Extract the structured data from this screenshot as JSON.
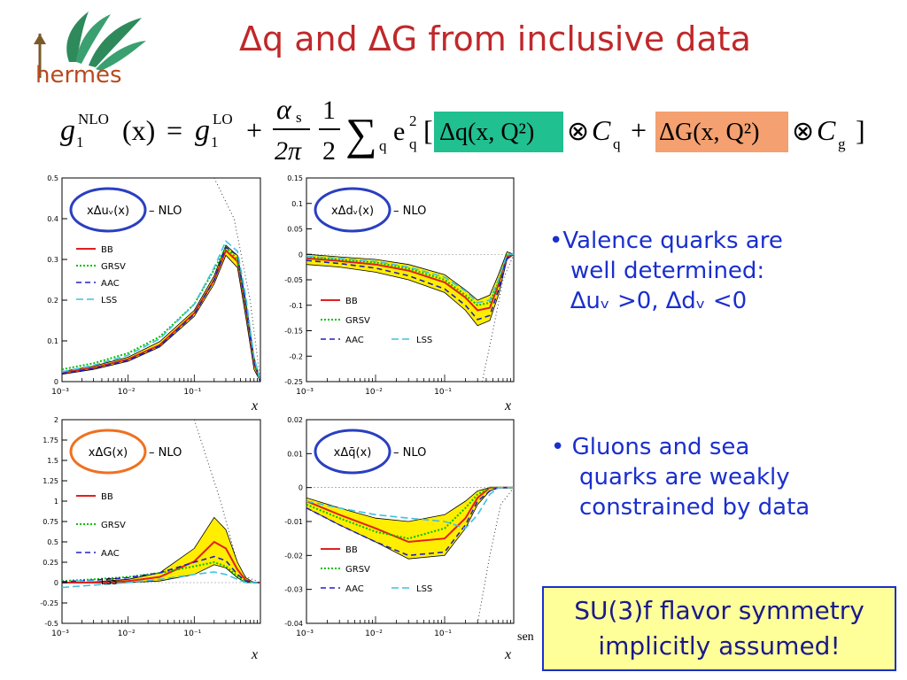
{
  "slide": {
    "title": "Δq and ΔG from inclusive data",
    "logo_text": "hermes",
    "formula": {
      "lhs": "g",
      "lhs_sup": "NLO",
      "lhs_sub": "1",
      "arg": "(x)",
      "eq": "=",
      "rhs_g": "g",
      "rhs_sup": "LO",
      "rhs_sub": "1",
      "plus": "+",
      "alpha": "α",
      "alpha_sub": "s",
      "two_pi": "2π",
      "half_num": "1",
      "half_den": "2",
      "sigma": "∑",
      "sum_sub": "q",
      "charge": "e",
      "charge_sup": "2",
      "charge_sub": "q",
      "lbracket": "[",
      "dq_term": "Δq(x, Q²)",
      "otimes": "⊗",
      "cq": "C",
      "cq_sub": "q",
      "plus2": "+",
      "dg_term": "ΔG(x, Q²)",
      "cg": "C",
      "cg_sub": "g",
      "rbracket": "]",
      "dq_color": "#20c090",
      "dg_color": "#f4a070"
    },
    "bullets": {
      "b1_line1": "•Valence quarks are",
      "b1_line2": "well determined:",
      "b1_line3": "∆uᵥ >0,  ∆dᵥ <0",
      "b2_line1": "• Gluons and sea",
      "b2_line2": "quarks are weakly",
      "b2_line3": "constrained by data"
    },
    "note_box": {
      "line1": "SU(3)f flavor symmetry",
      "line2": "implicitly assumed!"
    },
    "stray_text": "sen",
    "colors": {
      "title": "#c0282a",
      "bullets": "#1a2fcc",
      "band": "#ffee00",
      "bb": "#e02020",
      "grsv": "#00c000",
      "aac": "#2020c0",
      "lss": "#40c0e0",
      "circle_blue": "#2a3fc0",
      "circle_orange": "#f07020"
    }
  },
  "chart_data": [
    {
      "type": "line",
      "id": "du",
      "label": "xΔuᵥ(x)",
      "nlo": "– NLO",
      "circle": "blue",
      "xscale": "log",
      "xlim": [
        0.001,
        1
      ],
      "ylim": [
        0,
        0.5
      ],
      "yticks": [
        0,
        0.1,
        0.2,
        0.3,
        0.4,
        0.5
      ],
      "ytick_labels": [
        "0",
        "0.1",
        "0.2",
        "0.3",
        "0.4",
        "0.5"
      ],
      "xtick_labels": [
        "10⁻³",
        "10⁻²",
        "10⁻¹"
      ],
      "xlabel": "x",
      "legend": [
        "BB",
        "GRSV",
        "AAC",
        "LSS"
      ],
      "x": [
        0.001,
        0.003,
        0.01,
        0.03,
        0.1,
        0.2,
        0.3,
        0.45,
        0.6,
        0.8,
        1
      ],
      "band_upper": [
        0.025,
        0.038,
        0.06,
        0.098,
        0.175,
        0.26,
        0.335,
        0.31,
        0.2,
        0.06,
        0
      ],
      "band_lower": [
        0.018,
        0.03,
        0.05,
        0.085,
        0.16,
        0.24,
        0.31,
        0.28,
        0.16,
        0.03,
        0
      ],
      "series": [
        {
          "name": "BB",
          "values": [
            0.022,
            0.034,
            0.055,
            0.09,
            0.168,
            0.25,
            0.322,
            0.295,
            0.18,
            0.045,
            0
          ]
        },
        {
          "name": "GRSV",
          "values": [
            0.03,
            0.045,
            0.07,
            0.11,
            0.19,
            0.275,
            0.33,
            0.3,
            0.185,
            0.05,
            0
          ]
        },
        {
          "name": "AAC",
          "values": [
            0.02,
            0.032,
            0.052,
            0.088,
            0.165,
            0.25,
            0.33,
            0.31,
            0.19,
            0.05,
            0
          ]
        },
        {
          "name": "LSS",
          "values": [
            0.024,
            0.04,
            0.065,
            0.105,
            0.19,
            0.28,
            0.345,
            0.32,
            0.21,
            0.06,
            0
          ]
        }
      ],
      "positivity": [
        {
          "x": 0.2,
          "y": 0.5
        },
        {
          "x": 0.4,
          "y": 0.4
        },
        {
          "x": 0.7,
          "y": 0.2
        },
        {
          "x": 1,
          "y": 0
        }
      ]
    },
    {
      "type": "line",
      "id": "dd",
      "label": "xΔdᵥ(x)",
      "nlo": "– NLO",
      "circle": "blue",
      "xscale": "log",
      "xlim": [
        0.001,
        1
      ],
      "ylim": [
        -0.25,
        0.15
      ],
      "yticks": [
        -0.25,
        -0.2,
        -0.15,
        -0.1,
        -0.05,
        0,
        0.05,
        0.1,
        0.15
      ],
      "ytick_labels": [
        "-0.25",
        "-0.2",
        "-0.15",
        "-0.1",
        "-0.05",
        "0",
        "0.05",
        "0.1",
        "0.15"
      ],
      "xtick_labels": [
        "10⁻³",
        "10⁻²",
        "10⁻¹"
      ],
      "xlabel": "x",
      "legend": [
        "BB",
        "GRSV",
        "AAC",
        "LSS"
      ],
      "x": [
        0.001,
        0.003,
        0.01,
        0.03,
        0.1,
        0.2,
        0.3,
        0.45,
        0.6,
        0.8,
        1
      ],
      "band_upper": [
        0,
        -0.005,
        -0.01,
        -0.02,
        -0.04,
        -0.07,
        -0.09,
        -0.08,
        -0.04,
        0.005,
        0
      ],
      "band_lower": [
        -0.02,
        -0.025,
        -0.035,
        -0.05,
        -0.075,
        -0.11,
        -0.14,
        -0.13,
        -0.08,
        -0.01,
        0
      ],
      "series": [
        {
          "name": "BB",
          "values": [
            -0.008,
            -0.013,
            -0.02,
            -0.032,
            -0.055,
            -0.085,
            -0.11,
            -0.105,
            -0.06,
            -0.005,
            0
          ]
        },
        {
          "name": "GRSV",
          "values": [
            -0.005,
            -0.01,
            -0.016,
            -0.028,
            -0.05,
            -0.08,
            -0.1,
            -0.095,
            -0.055,
            0,
            0
          ]
        },
        {
          "name": "AAC",
          "values": [
            -0.012,
            -0.018,
            -0.027,
            -0.042,
            -0.068,
            -0.1,
            -0.128,
            -0.12,
            -0.07,
            -0.008,
            0
          ]
        },
        {
          "name": "LSS",
          "values": [
            -0.004,
            -0.008,
            -0.014,
            -0.025,
            -0.045,
            -0.072,
            -0.095,
            -0.09,
            -0.05,
            0,
            0
          ]
        }
      ],
      "positivity": [
        {
          "x": 0.35,
          "y": -0.25
        },
        {
          "x": 0.5,
          "y": -0.15
        },
        {
          "x": 0.7,
          "y": -0.05
        },
        {
          "x": 1,
          "y": 0
        }
      ]
    },
    {
      "type": "line",
      "id": "dg",
      "label": "xΔG(x)",
      "nlo": "– NLO",
      "circle": "orange",
      "xscale": "log",
      "xlim": [
        0.001,
        1
      ],
      "ylim": [
        -0.5,
        2
      ],
      "yticks": [
        -0.5,
        -0.25,
        0,
        0.25,
        0.5,
        0.75,
        1,
        1.25,
        1.5,
        1.75,
        2
      ],
      "ytick_labels": [
        "-0.5",
        "-0.25",
        "0",
        "0.25",
        "0.5",
        "0.75",
        "1",
        "1.25",
        "1.5",
        "1.75",
        "2"
      ],
      "xtick_labels": [
        "10⁻³",
        "10⁻²",
        "10⁻¹"
      ],
      "xlabel": "x",
      "legend": [
        "BB",
        "GRSV",
        "AAC",
        "LSS"
      ],
      "x": [
        0.001,
        0.003,
        0.01,
        0.03,
        0.1,
        0.2,
        0.3,
        0.45,
        0.6,
        0.8,
        1
      ],
      "band_upper": [
        0,
        0.01,
        0.04,
        0.12,
        0.42,
        0.8,
        0.65,
        0.25,
        0.06,
        0,
        0
      ],
      "band_lower": [
        0,
        -0.005,
        0,
        0.02,
        0.1,
        0.22,
        0.18,
        0.06,
        0,
        0,
        0
      ],
      "series": [
        {
          "name": "BB",
          "values": [
            0,
            0,
            0.02,
            0.07,
            0.26,
            0.5,
            0.42,
            0.16,
            0.03,
            0,
            0
          ]
        },
        {
          "name": "GRSV",
          "values": [
            0.02,
            0.04,
            0.07,
            0.12,
            0.2,
            0.25,
            0.2,
            0.08,
            0.02,
            0,
            0
          ]
        },
        {
          "name": "AAC",
          "values": [
            0.01,
            0.03,
            0.06,
            0.12,
            0.25,
            0.32,
            0.27,
            0.1,
            0.02,
            0,
            0
          ]
        },
        {
          "name": "LSS",
          "values": [
            -0.06,
            -0.03,
            0,
            0.04,
            0.1,
            0.13,
            0.1,
            0.04,
            0,
            0,
            0
          ]
        }
      ],
      "positivity": [
        {
          "x": 0.1,
          "y": 2
        },
        {
          "x": 0.25,
          "y": 1
        },
        {
          "x": 0.5,
          "y": 0.1
        },
        {
          "x": 1,
          "y": 0
        }
      ]
    },
    {
      "type": "line",
      "id": "dqbar",
      "label": "xΔq̄(x)",
      "nlo": "– NLO",
      "circle": "blue",
      "xscale": "log",
      "xlim": [
        0.001,
        1
      ],
      "ylim": [
        -0.04,
        0.02
      ],
      "yticks": [
        -0.04,
        -0.03,
        -0.02,
        -0.01,
        0,
        0.01,
        0.02
      ],
      "ytick_labels": [
        "-0.04",
        "-0.03",
        "-0.02",
        "-0.01",
        "0",
        "0.01",
        "0.02"
      ],
      "xtick_labels": [
        "10⁻³",
        "10⁻²",
        "10⁻¹"
      ],
      "xlabel": "x",
      "legend": [
        "BB",
        "GRSV",
        "AAC",
        "LSS"
      ],
      "x": [
        0.001,
        0.003,
        0.01,
        0.03,
        0.1,
        0.2,
        0.3,
        0.45,
        0.6,
        0.8,
        1
      ],
      "band_upper": [
        -0.003,
        -0.006,
        -0.009,
        -0.01,
        -0.008,
        -0.004,
        -0.001,
        0,
        0,
        0,
        0
      ],
      "band_lower": [
        -0.006,
        -0.011,
        -0.016,
        -0.021,
        -0.02,
        -0.012,
        -0.005,
        -0.001,
        0,
        0,
        0
      ],
      "series": [
        {
          "name": "BB",
          "values": [
            -0.004,
            -0.008,
            -0.012,
            -0.016,
            -0.015,
            -0.009,
            -0.003,
            0,
            0,
            0,
            0
          ]
        },
        {
          "name": "GRSV",
          "values": [
            -0.005,
            -0.009,
            -0.013,
            -0.015,
            -0.012,
            -0.006,
            -0.002,
            0,
            0,
            0,
            0
          ]
        },
        {
          "name": "AAC",
          "values": [
            -0.006,
            -0.011,
            -0.016,
            -0.02,
            -0.019,
            -0.011,
            -0.004,
            -0.001,
            0,
            0,
            0
          ]
        },
        {
          "name": "LSS",
          "values": [
            -0.004,
            -0.006,
            -0.008,
            -0.009,
            -0.01,
            -0.012,
            -0.008,
            -0.002,
            0,
            0,
            0
          ]
        }
      ],
      "positivity": [
        {
          "x": 0.3,
          "y": -0.04
        },
        {
          "x": 0.45,
          "y": -0.02
        },
        {
          "x": 0.65,
          "y": -0.005
        },
        {
          "x": 1,
          "y": 0
        }
      ]
    }
  ]
}
